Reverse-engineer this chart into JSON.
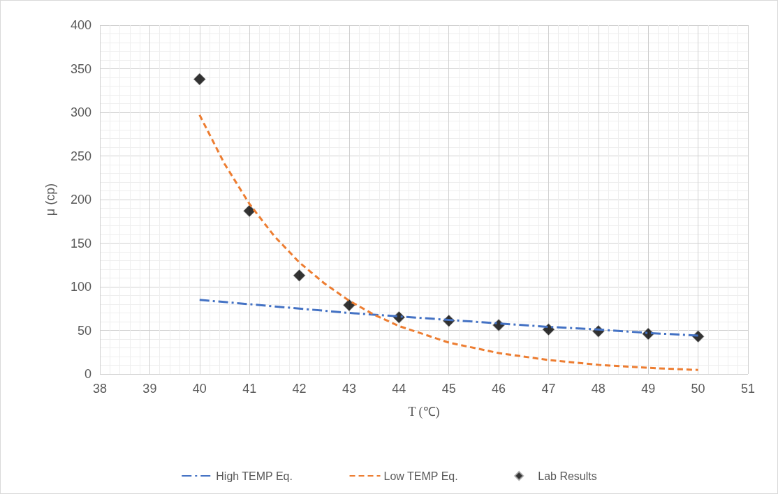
{
  "chart_data": {
    "type": "line",
    "xlabel": "T (℃)",
    "ylabel": "μ (cp)",
    "xlim": [
      38,
      51
    ],
    "xticks": [
      38,
      39,
      40,
      41,
      42,
      43,
      44,
      45,
      46,
      47,
      48,
      49,
      50,
      51
    ],
    "ylim": [
      0,
      400
    ],
    "yticks": [
      0,
      50,
      100,
      150,
      200,
      250,
      300,
      350,
      400
    ],
    "grid": true,
    "legend": "bottom",
    "series": [
      {
        "name": "High TEMP Eq.",
        "type": "line",
        "color": "#4472c4",
        "line_style": "dashdot",
        "marker": "none",
        "x": [
          40,
          41,
          42,
          43,
          44,
          45,
          46,
          47,
          48,
          49,
          50
        ],
        "values": [
          85,
          80,
          75,
          70,
          66,
          62,
          58,
          54,
          51,
          47,
          44
        ]
      },
      {
        "name": "Low TEMP Eq.",
        "type": "line",
        "color": "#ed7d31",
        "line_style": "dashed",
        "marker": "none",
        "x": [
          40,
          40.5,
          41,
          41.5,
          42,
          42.5,
          43,
          43.5,
          44,
          45,
          46,
          47,
          48,
          49,
          50
        ],
        "values": [
          297,
          241,
          195,
          158,
          128,
          104,
          84,
          68,
          55,
          36,
          24,
          16,
          10.5,
          7,
          4.6
        ]
      },
      {
        "name": "Lab Results",
        "type": "scatter",
        "color": "#000000",
        "marker": "diamond",
        "x": [
          40,
          41,
          42,
          43,
          44,
          45,
          46,
          47,
          48,
          49,
          50
        ],
        "values": [
          338,
          187,
          113,
          79,
          65,
          61,
          56,
          51,
          49,
          46,
          43
        ]
      }
    ]
  }
}
